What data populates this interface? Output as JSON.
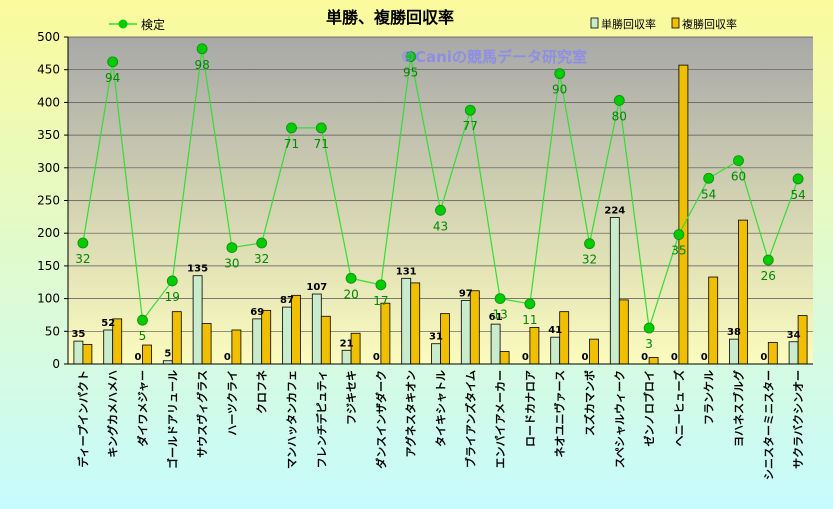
{
  "chart_data": {
    "type": "bar+line",
    "title": "単勝、複勝回収率",
    "watermark": "©Caniの競馬データ研究室",
    "ylim": [
      0,
      500
    ],
    "yticks": [
      0,
      50,
      100,
      150,
      200,
      250,
      300,
      350,
      400,
      450,
      500
    ],
    "legend": {
      "line": "検定",
      "bar1": "単勝回収率",
      "bar2": "複勝回収率"
    },
    "colors": {
      "bar1": "#c8eccc",
      "bar2": "#f0c000",
      "line": "#33dd33",
      "marker": "#00cc00"
    },
    "categories": [
      "ディープインパクト",
      "キングカメハメハ",
      "ダイワメジャー",
      "ゴールドアリュール",
      "サウスヴィグラス",
      "ハーツクライ",
      "クロフネ",
      "マンハッタンカフェ",
      "フレンチデピュティ",
      "フジキセキ",
      "ダンスインザダーク",
      "アグネスタキオン",
      "タイキシャトル",
      "ブライアンズタイム",
      "エンパイアメーカー",
      "ロードカナロア",
      "ネオユニヴァース",
      "スズカマンボ",
      "スペシャルウィーク",
      "ゼンノロブロイ",
      "ヘニーヒューズ",
      "フランケル",
      "ヨハネスブルグ",
      "シニスターミニスター",
      "サクラバクシンオー"
    ],
    "series": [
      {
        "name": "単勝回収率",
        "values": [
          35,
          52,
          0,
          5,
          135,
          0,
          69,
          87,
          107,
          21,
          0,
          131,
          31,
          97,
          61,
          0,
          41,
          0,
          224,
          0,
          0,
          0,
          38,
          0,
          34
        ],
        "labels": [
          "35",
          "52",
          "0",
          "5",
          "135",
          "0",
          "69",
          "87",
          "107",
          "21",
          "0",
          "131",
          "31",
          "97",
          "61",
          "0",
          "41",
          "0",
          "224",
          "0",
          "0",
          "0",
          "38",
          "0",
          "34"
        ]
      },
      {
        "name": "複勝回収率",
        "values": [
          30,
          69,
          29,
          80,
          62,
          52,
          82,
          105,
          73,
          47,
          93,
          124,
          77,
          112,
          19,
          56,
          80,
          38,
          98,
          10,
          457,
          133,
          220,
          33,
          74
        ]
      },
      {
        "name": "検定",
        "values": [
          185,
          462,
          67,
          127,
          482,
          178,
          185,
          361,
          361,
          131,
          121,
          470,
          235,
          388,
          100,
          92,
          444,
          184,
          403,
          55,
          198,
          284,
          311,
          159,
          283
        ],
        "labels": [
          "32",
          "94",
          "5",
          "19",
          "98",
          "30",
          "32",
          "71",
          "71",
          "20",
          "17",
          "95",
          "43",
          "77",
          "13",
          "11",
          "90",
          "32",
          "80",
          "3",
          "35",
          "54",
          "60",
          "26",
          "54"
        ]
      }
    ]
  }
}
